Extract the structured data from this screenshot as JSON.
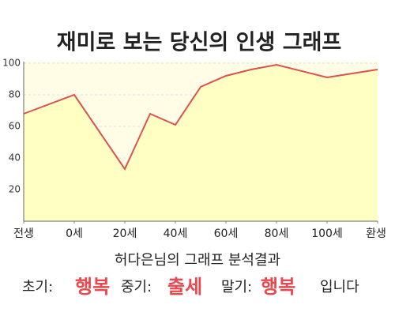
{
  "chart_data": {
    "type": "area-line",
    "title": "재미로 보는 당신의 인생 그래프",
    "x": [
      -20,
      0,
      20,
      30,
      40,
      50,
      60,
      70,
      80,
      100,
      120
    ],
    "series": [
      {
        "color": "#d9534f",
        "fill": "#ffffc4",
        "values": [
          68,
          80,
          33,
          68,
          61,
          85,
          92,
          96,
          99,
          91,
          96
        ]
      }
    ],
    "xlim": [
      -20,
      120
    ],
    "xticks": [
      {
        "value": -20,
        "label": "전생"
      },
      {
        "value": 0,
        "label": "0세"
      },
      {
        "value": 20,
        "label": "20세"
      },
      {
        "value": 40,
        "label": "40세"
      },
      {
        "value": 60,
        "label": "60세"
      },
      {
        "value": 80,
        "label": "80세"
      },
      {
        "value": 100,
        "label": "100세"
      },
      {
        "value": 120,
        "label": "환생"
      }
    ],
    "ylim": [
      0,
      100
    ],
    "yticks": [
      20,
      40,
      60,
      80,
      100
    ],
    "grid": true,
    "annotations": {
      "subtitle": "허다은님의 그래프 분석결과",
      "segments": [
        {
          "text": "초기:",
          "highlight": false
        },
        {
          "text": "행복",
          "highlight": true
        },
        {
          "text": "중기:",
          "highlight": false
        },
        {
          "text": "출세",
          "highlight": true
        },
        {
          "text": "말기:",
          "highlight": false
        },
        {
          "text": "행복",
          "highlight": true
        },
        {
          "text": "입니다",
          "highlight": false
        }
      ]
    }
  }
}
